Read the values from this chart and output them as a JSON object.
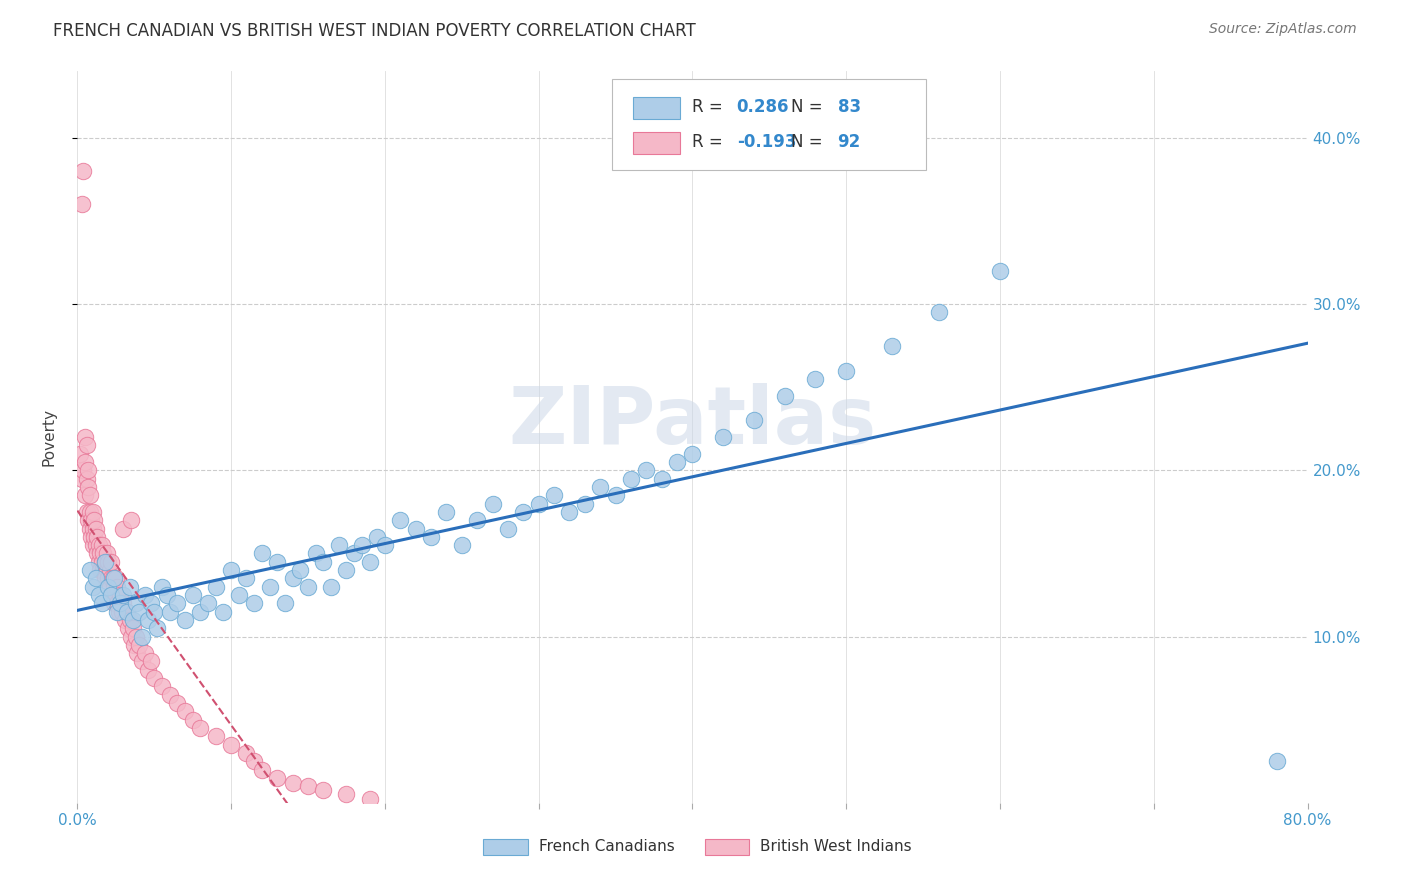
{
  "title": "FRENCH CANADIAN VS BRITISH WEST INDIAN POVERTY CORRELATION CHART",
  "source": "Source: ZipAtlas.com",
  "ylabel": "Poverty",
  "xlim": [
    0.0,
    0.8
  ],
  "ylim": [
    0.0,
    0.44
  ],
  "r_blue": 0.286,
  "n_blue": 83,
  "r_pink": -0.193,
  "n_pink": 92,
  "blue_color": "#aecde8",
  "pink_color": "#f5b8c8",
  "blue_edge_color": "#6aaad4",
  "pink_edge_color": "#e87898",
  "blue_line_color": "#2a6eba",
  "pink_line_color": "#d05070",
  "watermark": "ZIPatlas",
  "french_canadian_x": [
    0.008,
    0.01,
    0.012,
    0.014,
    0.016,
    0.018,
    0.02,
    0.022,
    0.024,
    0.026,
    0.028,
    0.03,
    0.032,
    0.034,
    0.036,
    0.038,
    0.04,
    0.042,
    0.044,
    0.046,
    0.048,
    0.05,
    0.052,
    0.055,
    0.058,
    0.06,
    0.065,
    0.07,
    0.075,
    0.08,
    0.085,
    0.09,
    0.095,
    0.1,
    0.105,
    0.11,
    0.115,
    0.12,
    0.125,
    0.13,
    0.135,
    0.14,
    0.145,
    0.15,
    0.155,
    0.16,
    0.165,
    0.17,
    0.175,
    0.18,
    0.185,
    0.19,
    0.195,
    0.2,
    0.21,
    0.22,
    0.23,
    0.24,
    0.25,
    0.26,
    0.27,
    0.28,
    0.29,
    0.3,
    0.31,
    0.32,
    0.33,
    0.34,
    0.35,
    0.36,
    0.37,
    0.38,
    0.39,
    0.4,
    0.42,
    0.44,
    0.46,
    0.48,
    0.5,
    0.53,
    0.56,
    0.6,
    0.78
  ],
  "french_canadian_y": [
    0.14,
    0.13,
    0.135,
    0.125,
    0.12,
    0.145,
    0.13,
    0.125,
    0.135,
    0.115,
    0.12,
    0.125,
    0.115,
    0.13,
    0.11,
    0.12,
    0.115,
    0.1,
    0.125,
    0.11,
    0.12,
    0.115,
    0.105,
    0.13,
    0.125,
    0.115,
    0.12,
    0.11,
    0.125,
    0.115,
    0.12,
    0.13,
    0.115,
    0.14,
    0.125,
    0.135,
    0.12,
    0.15,
    0.13,
    0.145,
    0.12,
    0.135,
    0.14,
    0.13,
    0.15,
    0.145,
    0.13,
    0.155,
    0.14,
    0.15,
    0.155,
    0.145,
    0.16,
    0.155,
    0.17,
    0.165,
    0.16,
    0.175,
    0.155,
    0.17,
    0.18,
    0.165,
    0.175,
    0.18,
    0.185,
    0.175,
    0.18,
    0.19,
    0.185,
    0.195,
    0.2,
    0.195,
    0.205,
    0.21,
    0.22,
    0.23,
    0.245,
    0.255,
    0.26,
    0.275,
    0.295,
    0.32,
    0.025
  ],
  "british_wi_x": [
    0.002,
    0.003,
    0.004,
    0.005,
    0.005,
    0.006,
    0.006,
    0.007,
    0.007,
    0.008,
    0.008,
    0.008,
    0.009,
    0.009,
    0.01,
    0.01,
    0.01,
    0.011,
    0.011,
    0.012,
    0.012,
    0.013,
    0.013,
    0.014,
    0.014,
    0.015,
    0.015,
    0.016,
    0.016,
    0.017,
    0.017,
    0.018,
    0.018,
    0.019,
    0.019,
    0.02,
    0.02,
    0.021,
    0.021,
    0.022,
    0.022,
    0.023,
    0.023,
    0.024,
    0.024,
    0.025,
    0.025,
    0.026,
    0.026,
    0.027,
    0.028,
    0.029,
    0.03,
    0.031,
    0.032,
    0.033,
    0.034,
    0.035,
    0.036,
    0.037,
    0.038,
    0.039,
    0.04,
    0.042,
    0.044,
    0.046,
    0.048,
    0.05,
    0.055,
    0.06,
    0.065,
    0.07,
    0.075,
    0.08,
    0.09,
    0.1,
    0.11,
    0.115,
    0.12,
    0.13,
    0.14,
    0.15,
    0.16,
    0.175,
    0.19,
    0.005,
    0.006,
    0.007,
    0.03,
    0.035,
    0.003,
    0.004
  ],
  "british_wi_y": [
    0.21,
    0.195,
    0.2,
    0.205,
    0.185,
    0.195,
    0.175,
    0.19,
    0.17,
    0.185,
    0.165,
    0.175,
    0.16,
    0.17,
    0.165,
    0.155,
    0.175,
    0.16,
    0.17,
    0.155,
    0.165,
    0.15,
    0.16,
    0.145,
    0.155,
    0.14,
    0.15,
    0.145,
    0.155,
    0.14,
    0.15,
    0.135,
    0.145,
    0.14,
    0.15,
    0.135,
    0.145,
    0.13,
    0.14,
    0.135,
    0.145,
    0.125,
    0.135,
    0.12,
    0.13,
    0.125,
    0.135,
    0.12,
    0.13,
    0.115,
    0.125,
    0.115,
    0.12,
    0.11,
    0.115,
    0.105,
    0.11,
    0.1,
    0.105,
    0.095,
    0.1,
    0.09,
    0.095,
    0.085,
    0.09,
    0.08,
    0.085,
    0.075,
    0.07,
    0.065,
    0.06,
    0.055,
    0.05,
    0.045,
    0.04,
    0.035,
    0.03,
    0.025,
    0.02,
    0.015,
    0.012,
    0.01,
    0.008,
    0.005,
    0.002,
    0.22,
    0.215,
    0.2,
    0.165,
    0.17,
    0.36,
    0.38
  ]
}
